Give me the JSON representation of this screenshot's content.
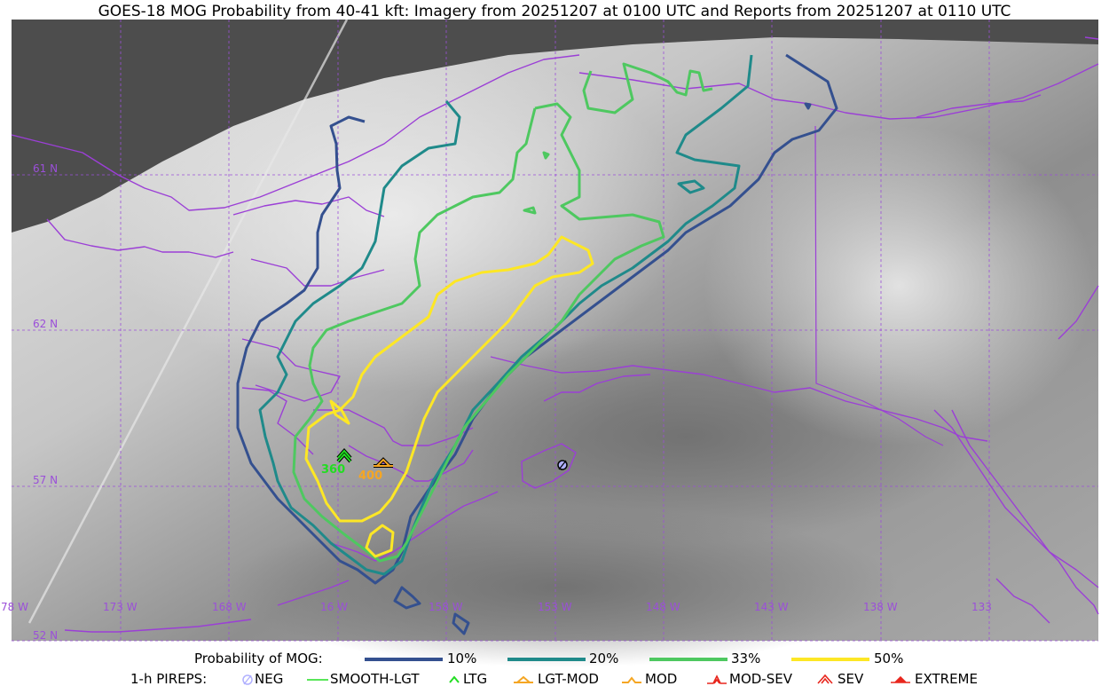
{
  "title": "GOES-18 MOG Probability from 40-41 kft: Imagery from 20251207 at 0100 UTC and Reports from 20251207 at 0110 UTC",
  "map": {
    "lat_labels": [
      "61 N",
      "62 N",
      "57 N",
      "52 N"
    ],
    "lon_labels": [
      "78 W",
      "173 W",
      "168 W",
      "16 W",
      "158 W",
      "153 W",
      "148 W",
      "143 W",
      "138 W",
      "133"
    ],
    "reports": [
      {
        "type": "ltg",
        "label": "360",
        "color": "#22dd22"
      },
      {
        "type": "lgt-mod",
        "label": "400",
        "color": "#f5a623"
      },
      {
        "type": "neg",
        "label": "",
        "color": "#b0b0ff"
      }
    ]
  },
  "legend": {
    "prob_title": "Probability of MOG:",
    "prob_items": [
      {
        "label": "10%",
        "color": "#34508f"
      },
      {
        "label": "20%",
        "color": "#1f8a8a"
      },
      {
        "label": "33%",
        "color": "#4ec860"
      },
      {
        "label": "50%",
        "color": "#fde725"
      }
    ],
    "pirep_title": "1-h PIREPS:",
    "pirep_items": [
      {
        "label": "NEG",
        "icon": "neg-icon"
      },
      {
        "label": "SMOOTH-LGT",
        "icon": "smooth-lgt-icon"
      },
      {
        "label": "LTG",
        "icon": "ltg-icon"
      },
      {
        "label": "LGT-MOD",
        "icon": "lgt-mod-icon"
      },
      {
        "label": "MOD",
        "icon": "mod-icon"
      },
      {
        "label": "MOD-SEV",
        "icon": "mod-sev-icon"
      },
      {
        "label": "SEV",
        "icon": "sev-icon"
      },
      {
        "label": "EXTREME",
        "icon": "extreme-icon"
      }
    ]
  }
}
